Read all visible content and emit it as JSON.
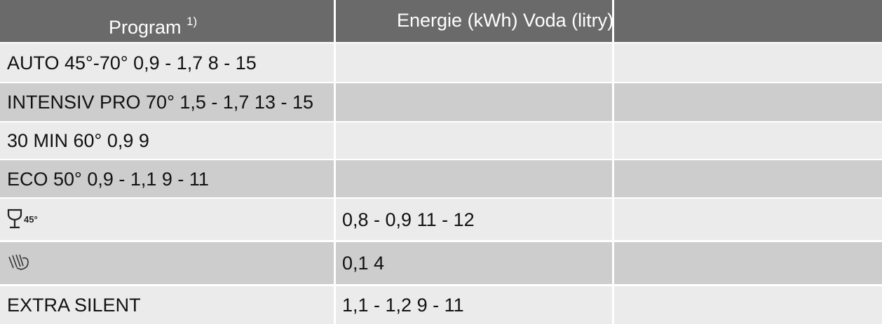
{
  "header": {
    "program": "Program",
    "program_note": "1)",
    "energy_water": "Energie (kWh) Voda (litry)"
  },
  "rows": [
    {
      "program": "AUTO 45°-70° 0,9 - 1,7 8 - 15"
    },
    {
      "program": "INTENSIV PRO 70° 1,5 - 1,7 13 - 15"
    },
    {
      "program": "30 MIN 60° 0,9 9"
    },
    {
      "program": "ECO 50° 0,9 - 1,1 9 - 11"
    },
    {
      "icon_label": "45°",
      "values": "0,8 - 0,9 11 - 12"
    },
    {
      "values": "0,1 4"
    },
    {
      "program": "EXTRA SILENT",
      "values": "1,1 - 1,2 9 - 11"
    }
  ]
}
